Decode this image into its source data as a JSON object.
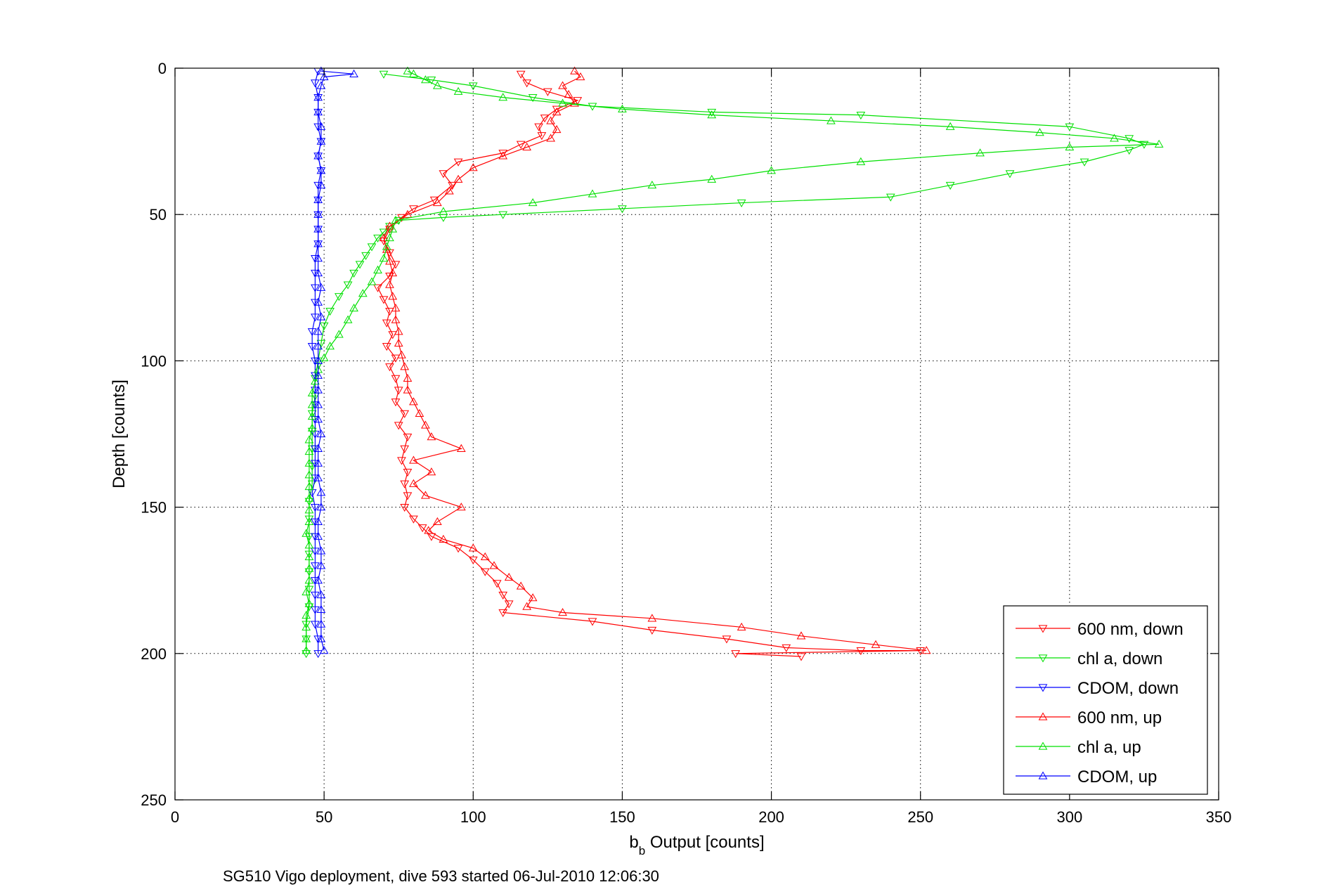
{
  "chart_data": {
    "type": "line",
    "title": "",
    "xlabel_main": "b",
    "xlabel_sub": "b",
    "xlabel_rest": " Output [counts]",
    "ylabel": "Depth [counts]",
    "caption": "SG510 Vigo deployment, dive 593 started 06-Jul-2010 12:06:30",
    "xlim": [
      0,
      350
    ],
    "ylim": [
      0,
      250
    ],
    "y_reversed": true,
    "xticks": [
      0,
      50,
      100,
      150,
      200,
      250,
      300,
      350
    ],
    "yticks": [
      0,
      50,
      100,
      150,
      200,
      250
    ],
    "xtick_labels": [
      "0",
      "50",
      "100",
      "150",
      "200",
      "250",
      "300",
      "350"
    ],
    "ytick_labels": [
      "0",
      "50",
      "100",
      "150",
      "200",
      "250"
    ],
    "grid": true,
    "legend_position": "bottom-right",
    "series": [
      {
        "name": "600 nm, down",
        "color": "#ff0000",
        "marker": "triangle-down",
        "points": [
          [
            116,
            2
          ],
          [
            118,
            5
          ],
          [
            125,
            8
          ],
          [
            135,
            11
          ],
          [
            128,
            14
          ],
          [
            124,
            17
          ],
          [
            122,
            20
          ],
          [
            123,
            23
          ],
          [
            116,
            26
          ],
          [
            110,
            29
          ],
          [
            95,
            32
          ],
          [
            90,
            36
          ],
          [
            93,
            40
          ],
          [
            87,
            45
          ],
          [
            80,
            48
          ],
          [
            76,
            51
          ],
          [
            72,
            55
          ],
          [
            70,
            59
          ],
          [
            72,
            63
          ],
          [
            74,
            67
          ],
          [
            72,
            71
          ],
          [
            68,
            75
          ],
          [
            70,
            79
          ],
          [
            72,
            83
          ],
          [
            71,
            87
          ],
          [
            73,
            91
          ],
          [
            71,
            95
          ],
          [
            74,
            99
          ],
          [
            72,
            102
          ],
          [
            74,
            106
          ],
          [
            75,
            110
          ],
          [
            74,
            114
          ],
          [
            77,
            118
          ],
          [
            75,
            122
          ],
          [
            78,
            126
          ],
          [
            77,
            130
          ],
          [
            76,
            134
          ],
          [
            78,
            138
          ],
          [
            77,
            142
          ],
          [
            78,
            146
          ],
          [
            77,
            150
          ],
          [
            80,
            154
          ],
          [
            83,
            157
          ],
          [
            86,
            160
          ],
          [
            95,
            164
          ],
          [
            100,
            168
          ],
          [
            104,
            172
          ],
          [
            108,
            176
          ],
          [
            110,
            180
          ],
          [
            112,
            183
          ],
          [
            110,
            186
          ],
          [
            140,
            189
          ],
          [
            160,
            192
          ],
          [
            185,
            195
          ],
          [
            205,
            198
          ],
          [
            230,
            199
          ],
          [
            250,
            199
          ],
          [
            188,
            200
          ],
          [
            210,
            201
          ]
        ]
      },
      {
        "name": "chl a, down",
        "color": "#00e000",
        "marker": "triangle-down",
        "points": [
          [
            70,
            2
          ],
          [
            86,
            4
          ],
          [
            100,
            6
          ],
          [
            120,
            10
          ],
          [
            140,
            13
          ],
          [
            180,
            15
          ],
          [
            230,
            16
          ],
          [
            300,
            20
          ],
          [
            320,
            24
          ],
          [
            325,
            26
          ],
          [
            320,
            28
          ],
          [
            305,
            32
          ],
          [
            280,
            36
          ],
          [
            260,
            40
          ],
          [
            240,
            44
          ],
          [
            190,
            46
          ],
          [
            150,
            48
          ],
          [
            110,
            50
          ],
          [
            90,
            51
          ],
          [
            75,
            52
          ],
          [
            72,
            54
          ],
          [
            70,
            56
          ],
          [
            68,
            58
          ],
          [
            66,
            61
          ],
          [
            64,
            64
          ],
          [
            62,
            67
          ],
          [
            60,
            70
          ],
          [
            58,
            74
          ],
          [
            55,
            78
          ],
          [
            52,
            83
          ],
          [
            50,
            88
          ],
          [
            49,
            94
          ],
          [
            48,
            100
          ],
          [
            47,
            106
          ],
          [
            47,
            112
          ],
          [
            46,
            118
          ],
          [
            46,
            124
          ],
          [
            46,
            130
          ],
          [
            46,
            136
          ],
          [
            46,
            142
          ],
          [
            45,
            148
          ],
          [
            45,
            154
          ],
          [
            45,
            160
          ],
          [
            45,
            166
          ],
          [
            45,
            172
          ],
          [
            45,
            178
          ],
          [
            45,
            184
          ],
          [
            44,
            190
          ],
          [
            44,
            195
          ],
          [
            44,
            200
          ]
        ]
      },
      {
        "name": "CDOM, down",
        "color": "#0000ff",
        "marker": "triangle-down",
        "points": [
          [
            48,
            1
          ],
          [
            47,
            5
          ],
          [
            48,
            10
          ],
          [
            48,
            15
          ],
          [
            48,
            20
          ],
          [
            49,
            25
          ],
          [
            48,
            30
          ],
          [
            49,
            35
          ],
          [
            48,
            40
          ],
          [
            48,
            45
          ],
          [
            48,
            50
          ],
          [
            48,
            55
          ],
          [
            48,
            60
          ],
          [
            47,
            65
          ],
          [
            47,
            70
          ],
          [
            47,
            75
          ],
          [
            47,
            80
          ],
          [
            47,
            85
          ],
          [
            46,
            90
          ],
          [
            46,
            95
          ],
          [
            47,
            100
          ],
          [
            47,
            105
          ],
          [
            47,
            110
          ],
          [
            47,
            115
          ],
          [
            47,
            120
          ],
          [
            47,
            125
          ],
          [
            47,
            130
          ],
          [
            47,
            135
          ],
          [
            47,
            140
          ],
          [
            46,
            145
          ],
          [
            47,
            150
          ],
          [
            47,
            155
          ],
          [
            47,
            160
          ],
          [
            47,
            165
          ],
          [
            47,
            170
          ],
          [
            47,
            175
          ],
          [
            47,
            180
          ],
          [
            47,
            185
          ],
          [
            47,
            190
          ],
          [
            48,
            195
          ],
          [
            48,
            200
          ]
        ]
      },
      {
        "name": "600 nm, up",
        "color": "#ff0000",
        "marker": "triangle-up",
        "points": [
          [
            252,
            199
          ],
          [
            235,
            197
          ],
          [
            210,
            194
          ],
          [
            190,
            191
          ],
          [
            160,
            188
          ],
          [
            130,
            186
          ],
          [
            118,
            184
          ],
          [
            120,
            181
          ],
          [
            116,
            177
          ],
          [
            112,
            174
          ],
          [
            107,
            170
          ],
          [
            104,
            167
          ],
          [
            100,
            164
          ],
          [
            90,
            161
          ],
          [
            85,
            158
          ],
          [
            88,
            155
          ],
          [
            96,
            150
          ],
          [
            84,
            146
          ],
          [
            80,
            142
          ],
          [
            86,
            138
          ],
          [
            80,
            134
          ],
          [
            96,
            130
          ],
          [
            86,
            126
          ],
          [
            84,
            122
          ],
          [
            82,
            118
          ],
          [
            80,
            114
          ],
          [
            78,
            110
          ],
          [
            78,
            106
          ],
          [
            77,
            102
          ],
          [
            76,
            98
          ],
          [
            75,
            94
          ],
          [
            75,
            90
          ],
          [
            74,
            86
          ],
          [
            74,
            82
          ],
          [
            73,
            78
          ],
          [
            72,
            74
          ],
          [
            73,
            70
          ],
          [
            72,
            66
          ],
          [
            71,
            62
          ],
          [
            70,
            58
          ],
          [
            72,
            54
          ],
          [
            78,
            50
          ],
          [
            88,
            46
          ],
          [
            92,
            42
          ],
          [
            95,
            38
          ],
          [
            100,
            34
          ],
          [
            110,
            30
          ],
          [
            118,
            27
          ],
          [
            126,
            24
          ],
          [
            128,
            21
          ],
          [
            126,
            18
          ],
          [
            128,
            15
          ],
          [
            134,
            12
          ],
          [
            132,
            9
          ],
          [
            130,
            6
          ],
          [
            136,
            3
          ],
          [
            134,
            1
          ]
        ]
      },
      {
        "name": "chl a, up",
        "color": "#00e000",
        "marker": "triangle-up",
        "points": [
          [
            44,
            199
          ],
          [
            44,
            195
          ],
          [
            44,
            191
          ],
          [
            44,
            187
          ],
          [
            45,
            183
          ],
          [
            44,
            179
          ],
          [
            45,
            175
          ],
          [
            45,
            171
          ],
          [
            45,
            167
          ],
          [
            45,
            163
          ],
          [
            44,
            159
          ],
          [
            45,
            155
          ],
          [
            45,
            151
          ],
          [
            45,
            147
          ],
          [
            45,
            143
          ],
          [
            45,
            139
          ],
          [
            45,
            135
          ],
          [
            45,
            131
          ],
          [
            45,
            127
          ],
          [
            46,
            123
          ],
          [
            46,
            119
          ],
          [
            46,
            115
          ],
          [
            46,
            111
          ],
          [
            47,
            107
          ],
          [
            48,
            103
          ],
          [
            50,
            99
          ],
          [
            52,
            95
          ],
          [
            55,
            91
          ],
          [
            58,
            86
          ],
          [
            60,
            82
          ],
          [
            63,
            77
          ],
          [
            66,
            73
          ],
          [
            68,
            69
          ],
          [
            70,
            65
          ],
          [
            71,
            61
          ],
          [
            72,
            58
          ],
          [
            73,
            55
          ],
          [
            74,
            52
          ],
          [
            90,
            49
          ],
          [
            120,
            46
          ],
          [
            140,
            43
          ],
          [
            160,
            40
          ],
          [
            180,
            38
          ],
          [
            200,
            35
          ],
          [
            230,
            32
          ],
          [
            270,
            29
          ],
          [
            300,
            27
          ],
          [
            330,
            26
          ],
          [
            315,
            24
          ],
          [
            290,
            22
          ],
          [
            260,
            20
          ],
          [
            220,
            18
          ],
          [
            180,
            16
          ],
          [
            150,
            14
          ],
          [
            130,
            12
          ],
          [
            110,
            10
          ],
          [
            95,
            8
          ],
          [
            88,
            6
          ],
          [
            84,
            4
          ],
          [
            80,
            2
          ],
          [
            78,
            1
          ]
        ]
      },
      {
        "name": "CDOM, up",
        "color": "#0000ff",
        "marker": "triangle-up",
        "points": [
          [
            50,
            199
          ],
          [
            49,
            195
          ],
          [
            49,
            190
          ],
          [
            49,
            185
          ],
          [
            49,
            180
          ],
          [
            48,
            175
          ],
          [
            49,
            170
          ],
          [
            49,
            165
          ],
          [
            48,
            160
          ],
          [
            48,
            155
          ],
          [
            49,
            150
          ],
          [
            49,
            145
          ],
          [
            48,
            140
          ],
          [
            48,
            135
          ],
          [
            48,
            130
          ],
          [
            49,
            125
          ],
          [
            48,
            120
          ],
          [
            48,
            115
          ],
          [
            48,
            110
          ],
          [
            48,
            105
          ],
          [
            48,
            100
          ],
          [
            48,
            95
          ],
          [
            48,
            90
          ],
          [
            49,
            85
          ],
          [
            48,
            80
          ],
          [
            49,
            75
          ],
          [
            48,
            70
          ],
          [
            48,
            65
          ],
          [
            48,
            60
          ],
          [
            48,
            55
          ],
          [
            48,
            50
          ],
          [
            48,
            45
          ],
          [
            49,
            40
          ],
          [
            49,
            35
          ],
          [
            48,
            30
          ],
          [
            49,
            25
          ],
          [
            49,
            20
          ],
          [
            48,
            15
          ],
          [
            48,
            10
          ],
          [
            49,
            6
          ],
          [
            50,
            3
          ],
          [
            60,
            2
          ],
          [
            49,
            1
          ]
        ]
      }
    ]
  }
}
